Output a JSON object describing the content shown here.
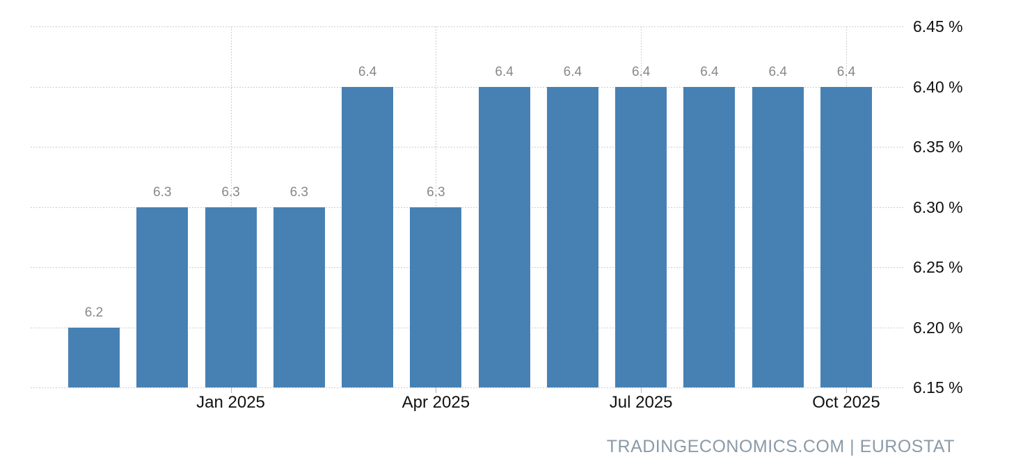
{
  "chart_data": {
    "type": "bar",
    "title": "",
    "xlabel": "",
    "ylabel": "",
    "unit": "%",
    "ylim": [
      6.15,
      6.45
    ],
    "grid": "dotted",
    "legend": "none",
    "values": [
      6.2,
      6.3,
      6.3,
      6.3,
      6.4,
      6.3,
      6.4,
      6.4,
      6.4,
      6.4,
      6.4,
      6.4
    ],
    "bar_labels": [
      "6.2",
      "6.3",
      "6.3",
      "6.3",
      "6.4",
      "6.3",
      "6.4",
      "6.4",
      "6.4",
      "6.4",
      "6.4",
      "6.4"
    ],
    "x_ticks": [
      {
        "label": "Jan 2025",
        "index": 2
      },
      {
        "label": "Apr 2025",
        "index": 5
      },
      {
        "label": "Jul 2025",
        "index": 8
      },
      {
        "label": "Oct 2025",
        "index": 11
      }
    ],
    "y_ticks": [
      {
        "label": "6.45 %",
        "value": 6.45
      },
      {
        "label": "6.40 %",
        "value": 6.4
      },
      {
        "label": "6.35 %",
        "value": 6.35
      },
      {
        "label": "6.30 %",
        "value": 6.3
      },
      {
        "label": "6.25 %",
        "value": 6.25
      },
      {
        "label": "6.20 %",
        "value": 6.2
      },
      {
        "label": "6.15 %",
        "value": 6.15
      }
    ],
    "colors": {
      "bar": "#4781b4",
      "grid": "#cccccc",
      "data_label": "#888888",
      "axis_text": "#111111"
    }
  },
  "attribution": {
    "text": "TRADINGECONOMICS.COM | EUROSTAT",
    "color": "#8b9aa7"
  }
}
